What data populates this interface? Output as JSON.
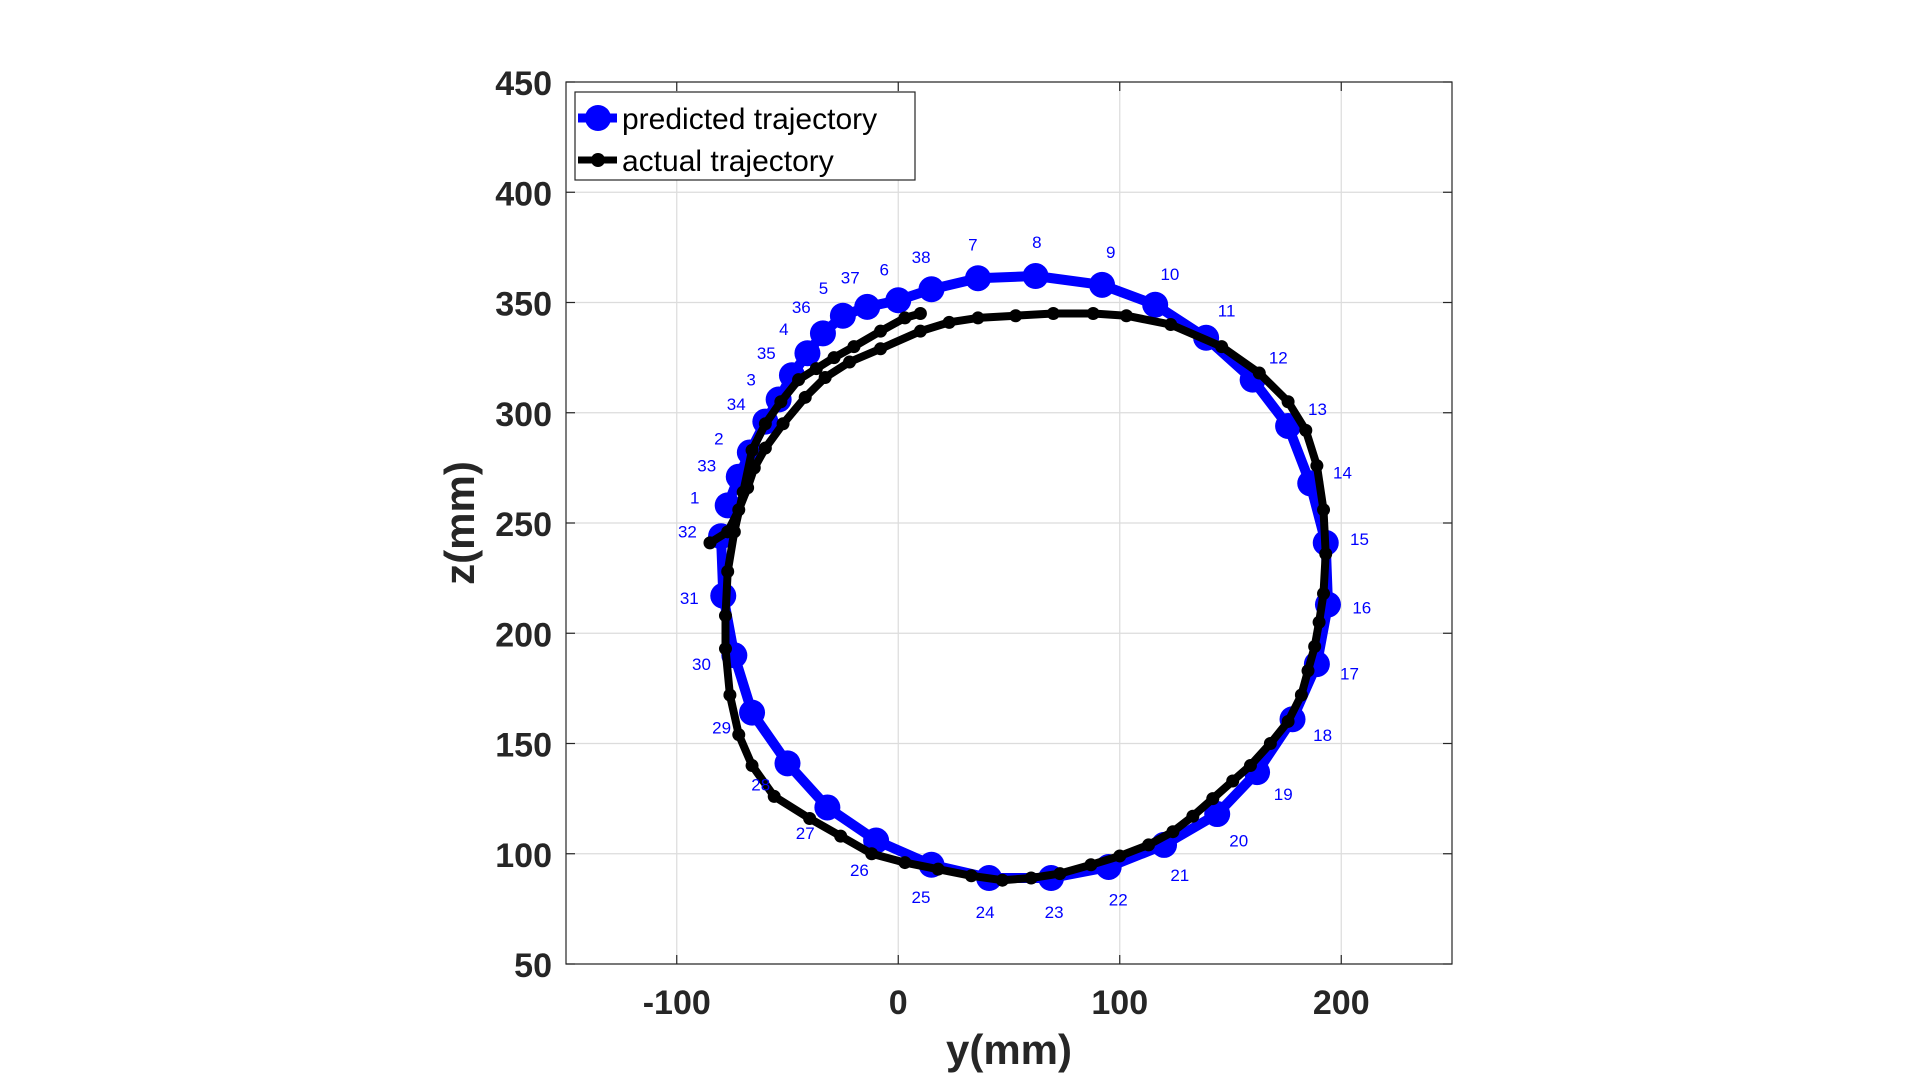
{
  "chart_data": {
    "type": "line",
    "xlabel": "y(mm)",
    "ylabel": "z(mm)",
    "xlim": [
      -150,
      250
    ],
    "ylim": [
      50,
      450
    ],
    "xticks": [
      -100,
      0,
      100,
      200
    ],
    "yticks": [
      50,
      100,
      150,
      200,
      250,
      300,
      350,
      400,
      450
    ],
    "grid": true,
    "legend_position": "top-left",
    "series": [
      {
        "name": "predicted trajectory",
        "color": "#0000ff",
        "marker": "large-circle",
        "labels": [
          "1",
          "33",
          "2",
          "34",
          "3",
          "35",
          "4",
          "36",
          "5",
          "37",
          "6",
          "38",
          "7",
          "8",
          "9",
          "10",
          "11",
          "12",
          "13",
          "14",
          "15",
          "16",
          "17",
          "18",
          "19",
          "20",
          "21",
          "22",
          "23",
          "24",
          "25",
          "26",
          "27",
          "28",
          "29",
          "30",
          "31",
          "32"
        ],
        "x": [
          -77,
          -72,
          -67,
          -60,
          -54,
          -48,
          -41,
          -34,
          -25,
          -14,
          0,
          15,
          36,
          62,
          92,
          116,
          139,
          160,
          176,
          186,
          193,
          194,
          189,
          178,
          162,
          144,
          120,
          95,
          69,
          41,
          15,
          -10,
          -32,
          -50,
          -66,
          -74,
          -79,
          -80
        ],
        "y": [
          258,
          271,
          282,
          296,
          306,
          317,
          327,
          336,
          344,
          348,
          351,
          356,
          361,
          362,
          358,
          349,
          334,
          315,
          294,
          268,
          241,
          213,
          186,
          161,
          137,
          118,
          104,
          94,
          89,
          89,
          95,
          106,
          121,
          141,
          164,
          190,
          217,
          244
        ]
      },
      {
        "name": "actual trajectory",
        "color": "#000000",
        "marker": "small-circle",
        "x": [
          -85,
          -77,
          -72,
          -68,
          -65,
          -60,
          -52,
          -42,
          -33,
          -22,
          -8,
          10,
          23,
          36,
          53,
          70,
          88,
          103,
          123,
          146,
          163,
          176,
          184,
          189,
          192,
          193,
          192,
          190,
          188,
          185,
          182,
          176,
          168,
          159,
          151,
          142,
          133,
          124,
          113,
          100,
          87,
          73,
          60,
          47,
          33,
          18,
          3,
          -12,
          -26,
          -40,
          -56,
          -66,
          -72,
          -76,
          -78,
          -78,
          -77,
          -74,
          -70,
          -66,
          -60,
          -53,
          -45,
          -37,
          -29,
          -20,
          -8,
          3,
          10
        ],
        "y": [
          241,
          246,
          256,
          266,
          275,
          284,
          295,
          307,
          316,
          323,
          329,
          337,
          341,
          343,
          344,
          345,
          345,
          344,
          340,
          330,
          318,
          305,
          292,
          276,
          256,
          236,
          218,
          205,
          194,
          183,
          172,
          160,
          150,
          140,
          133,
          125,
          117,
          110,
          104,
          99,
          95,
          91,
          89,
          88,
          90,
          93,
          96,
          100,
          108,
          116,
          126,
          140,
          154,
          172,
          193,
          208,
          228,
          246,
          264,
          283,
          295,
          305,
          315,
          320,
          325,
          330,
          337,
          343,
          345
        ]
      }
    ]
  }
}
